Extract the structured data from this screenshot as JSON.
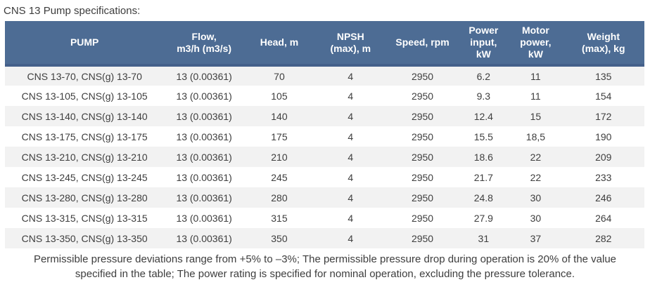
{
  "title": "CNS 13 Pump specifications:",
  "table": {
    "columns": [
      {
        "key": "pump",
        "label": "PUMP"
      },
      {
        "key": "flow",
        "label": "Flow,\nm3/h (m3/s)"
      },
      {
        "key": "head",
        "label": "Head, m"
      },
      {
        "key": "npsh",
        "label": "NPSH\n(max), m"
      },
      {
        "key": "speed",
        "label": "Speed, rpm"
      },
      {
        "key": "power-input",
        "label": "Power\ninput,\nkW"
      },
      {
        "key": "motor-power",
        "label": "Motor\npower,\nkW"
      },
      {
        "key": "weight",
        "label": "Weight\n(max), kg"
      }
    ],
    "rows": [
      [
        "CNS 13-70, CNS(g) 13-70",
        "13 (0.00361)",
        "70",
        "4",
        "2950",
        "6.2",
        "11",
        "135"
      ],
      [
        "CNS 13-105, CNS(g) 13-105",
        "13 (0.00361)",
        "105",
        "4",
        "2950",
        "9.3",
        "11",
        "154"
      ],
      [
        "CNS 13-140, CNS(g) 13-140",
        "13 (0.00361)",
        "140",
        "4",
        "2950",
        "12.4",
        "15",
        "172"
      ],
      [
        "CNS 13-175, CNS(g) 13-175",
        "13 (0.00361)",
        "175",
        "4",
        "2950",
        "15.5",
        "18,5",
        "190"
      ],
      [
        "CNS 13-210, CNS(g) 13-210",
        "13 (0.00361)",
        "210",
        "4",
        "2950",
        "18.6",
        "22",
        "209"
      ],
      [
        "CNS 13-245, CNS(g) 13-245",
        "13 (0.00361)",
        "245",
        "4",
        "2950",
        "21.7",
        "22",
        "233"
      ],
      [
        "CNS 13-280, CNS(g) 13-280",
        "13 (0.00361)",
        "280",
        "4",
        "2950",
        "24.8",
        "30",
        "246"
      ],
      [
        "CNS 13-315, CNS(g) 13-315",
        "13 (0.00361)",
        "315",
        "4",
        "2950",
        "27.9",
        "30",
        "264"
      ],
      [
        "CNS 13-350, CNS(g) 13-350",
        "13 (0.00361)",
        "350",
        "4",
        "2950",
        "31",
        "37",
        "282"
      ]
    ],
    "column_widths_percent": [
      24.9,
      12.5,
      11.0,
      11.3,
      11.2,
      7.9,
      8.4,
      12.8
    ]
  },
  "footnote": "Permissible pressure deviations range from +5% to –3%; The permissible pressure drop during operation is 20% of the value specified in the table; The power rating is specified for nominal operation, excluding the pressure tolerance.",
  "colors": {
    "header_bg": "#4d6c94",
    "header_border": "#44608a",
    "header_text": "#ffffff",
    "row_stripe": "#f2f2f2",
    "row_plain": "#ffffff",
    "body_text": "#3e3e3e"
  }
}
